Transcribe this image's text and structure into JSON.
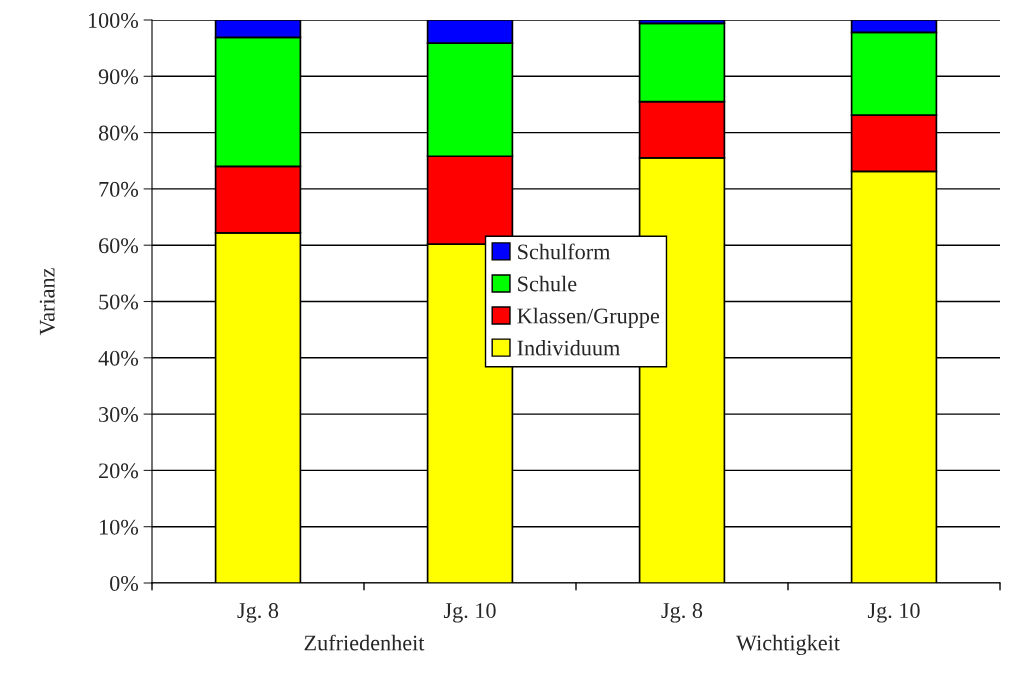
{
  "chart_data": {
    "type": "bar",
    "stacked": true,
    "ylabel": "Varianz",
    "categories": [
      "Jg. 8",
      "Jg. 10",
      "Jg. 8",
      "Jg. 10"
    ],
    "series": [
      {
        "name": "Individuum",
        "color": "#ffff00",
        "values": [
          62.2,
          60.2,
          75.5,
          73.1
        ]
      },
      {
        "name": "Klassen/Gruppe",
        "color": "#ff0000",
        "values": [
          11.8,
          15.6,
          10.0,
          10.0
        ]
      },
      {
        "name": "Schule",
        "color": "#00ff00",
        "values": [
          22.9,
          20.1,
          13.9,
          14.7
        ]
      },
      {
        "name": "Schulform",
        "color": "#0000ff",
        "values": [
          3.1,
          4.1,
          0.6,
          2.2
        ]
      }
    ],
    "ylim": [
      0,
      100
    ],
    "yticks": [
      {
        "value": 0,
        "label": "0%"
      },
      {
        "value": 10,
        "label": "10%"
      },
      {
        "value": 20,
        "label": "20%"
      },
      {
        "value": 30,
        "label": "30%"
      },
      {
        "value": 40,
        "label": "40%"
      },
      {
        "value": 50,
        "label": "50%"
      },
      {
        "value": 60,
        "label": "60%"
      },
      {
        "value": 70,
        "label": "70%"
      },
      {
        "value": 80,
        "label": "80%"
      },
      {
        "value": 90,
        "label": "90%"
      },
      {
        "value": 100,
        "label": "100%"
      }
    ],
    "annotations": [
      "Zufriedenheit",
      "Wichtigkeit"
    ],
    "grid": "y",
    "legend": "center"
  }
}
